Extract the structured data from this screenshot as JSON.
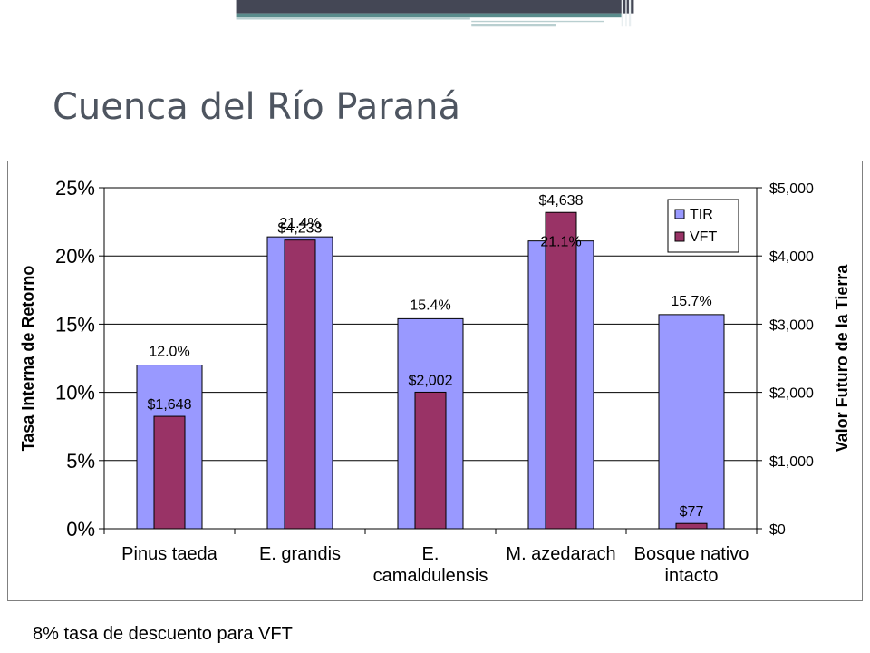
{
  "slide": {
    "title": "Cuenca del Río Paraná",
    "footnote": "8% tasa de descuento para VFT"
  },
  "colors": {
    "header_dark": "#444755",
    "header_teal": "#5a8c8c",
    "header_light": "#b9cfd0",
    "title_text": "#4e5560",
    "tir_bar": "#9999ff",
    "vft_bar": "#993366"
  },
  "chart_data": {
    "type": "bar",
    "categories": [
      [
        "Pinus taeda"
      ],
      [
        "E. grandis"
      ],
      [
        "E.",
        "camaldulensis"
      ],
      [
        "M. azedarach"
      ],
      [
        "Bosque nativo",
        "intacto"
      ]
    ],
    "series": [
      {
        "name": "TIR",
        "axis": "left",
        "values": [
          12.0,
          21.4,
          15.4,
          21.1,
          15.7
        ],
        "labels": [
          "12.0%",
          "21.4%",
          "15.4%",
          "21.1%",
          "15.7%"
        ]
      },
      {
        "name": "VFT",
        "axis": "right",
        "values": [
          1648,
          4233,
          2002,
          4638,
          77
        ],
        "labels": [
          "$1,648",
          "$4,233",
          "$2,002",
          "$4,638",
          "$77"
        ]
      }
    ],
    "ylabel": "Tasa Interna de Retorno",
    "y2label": "Valor Futuro de la Tierra",
    "ylim": [
      0,
      25
    ],
    "y2lim": [
      0,
      5000
    ],
    "yticks": [
      0,
      5,
      10,
      15,
      20,
      25
    ],
    "ytick_labels": [
      "0%",
      "5%",
      "10%",
      "15%",
      "20%",
      "25%"
    ],
    "y2ticks": [
      0,
      1000,
      2000,
      3000,
      4000,
      5000
    ],
    "y2tick_labels": [
      "$0",
      "$1,000",
      "$2,000",
      "$3,000",
      "$4,000",
      "$5,000"
    ],
    "grid": true,
    "legend": "top-right"
  }
}
